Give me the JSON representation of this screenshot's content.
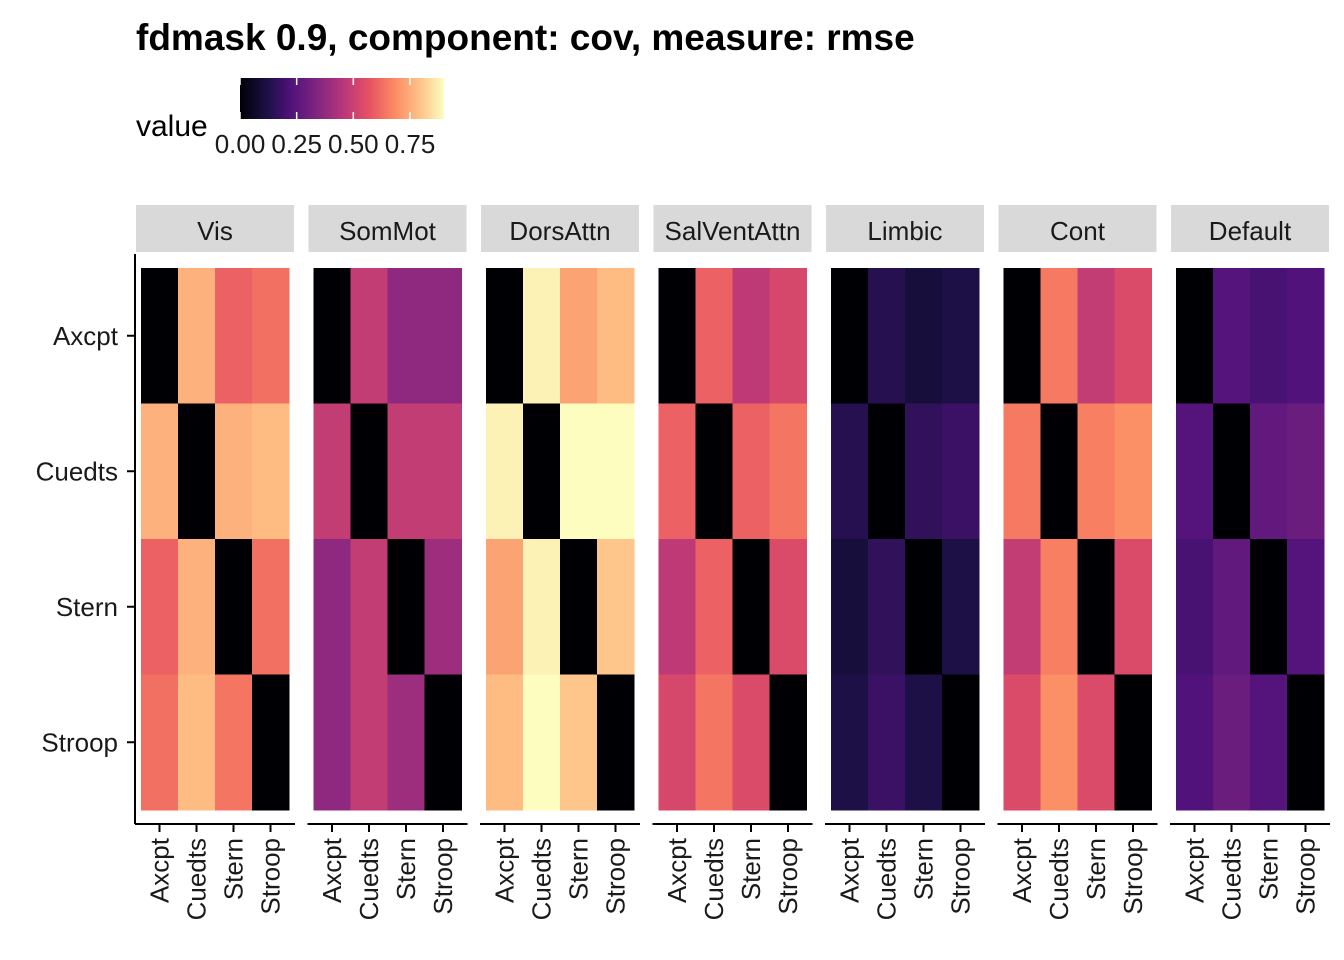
{
  "chart_data": {
    "type": "heatmap",
    "title": "fdmask 0.9, component: cov, measure: rmse",
    "legend": {
      "title": "value",
      "ticks": [
        0.0,
        0.25,
        0.5,
        0.75
      ],
      "tick_labels": [
        "0.00",
        "0.25",
        "0.50",
        "0.75"
      ],
      "range": [
        0,
        0.9
      ],
      "placement": "top-left",
      "colormap": "magma"
    },
    "categories": [
      "Axcpt",
      "Cuedts",
      "Stern",
      "Stroop"
    ],
    "x_categories": [
      "Axcpt",
      "Cuedts",
      "Stern",
      "Stroop"
    ],
    "y_categories": [
      "Axcpt",
      "Cuedts",
      "Stern",
      "Stroop"
    ],
    "panels": [
      {
        "name": "Vis",
        "values": [
          [
            0.0,
            0.76,
            0.6,
            0.63
          ],
          [
            0.76,
            0.0,
            0.76,
            0.78
          ],
          [
            0.6,
            0.76,
            0.0,
            0.63
          ],
          [
            0.63,
            0.78,
            0.64,
            0.0
          ]
        ]
      },
      {
        "name": "SomMot",
        "values": [
          [
            0.0,
            0.48,
            0.37,
            0.37
          ],
          [
            0.48,
            0.0,
            0.48,
            0.48
          ],
          [
            0.37,
            0.48,
            0.0,
            0.4
          ],
          [
            0.37,
            0.48,
            0.4,
            0.0
          ]
        ]
      },
      {
        "name": "DorsAttn",
        "values": [
          [
            0.0,
            0.88,
            0.73,
            0.78
          ],
          [
            0.88,
            0.0,
            0.9,
            0.96
          ],
          [
            0.73,
            0.88,
            0.0,
            0.8
          ],
          [
            0.78,
            0.96,
            0.8,
            0.0
          ]
        ]
      },
      {
        "name": "SalVentAttn",
        "values": [
          [
            0.0,
            0.6,
            0.47,
            0.53
          ],
          [
            0.6,
            0.0,
            0.6,
            0.64
          ],
          [
            0.47,
            0.6,
            0.0,
            0.54
          ],
          [
            0.53,
            0.64,
            0.54,
            0.0
          ]
        ]
      },
      {
        "name": "Limbic",
        "values": [
          [
            0.0,
            0.14,
            0.1,
            0.12
          ],
          [
            0.14,
            0.0,
            0.16,
            0.18
          ],
          [
            0.1,
            0.16,
            0.0,
            0.12
          ],
          [
            0.12,
            0.18,
            0.12,
            0.0
          ]
        ]
      },
      {
        "name": "Cont",
        "values": [
          [
            0.0,
            0.65,
            0.48,
            0.54
          ],
          [
            0.65,
            0.0,
            0.66,
            0.69
          ],
          [
            0.48,
            0.66,
            0.0,
            0.54
          ],
          [
            0.54,
            0.69,
            0.54,
            0.0
          ]
        ]
      },
      {
        "name": "Default",
        "values": [
          [
            0.0,
            0.24,
            0.21,
            0.23
          ],
          [
            0.24,
            0.0,
            0.27,
            0.29
          ],
          [
            0.21,
            0.27,
            0.0,
            0.24
          ],
          [
            0.23,
            0.29,
            0.24,
            0.0
          ]
        ]
      }
    ],
    "xlabel": "",
    "ylabel": "",
    "grid": false
  }
}
